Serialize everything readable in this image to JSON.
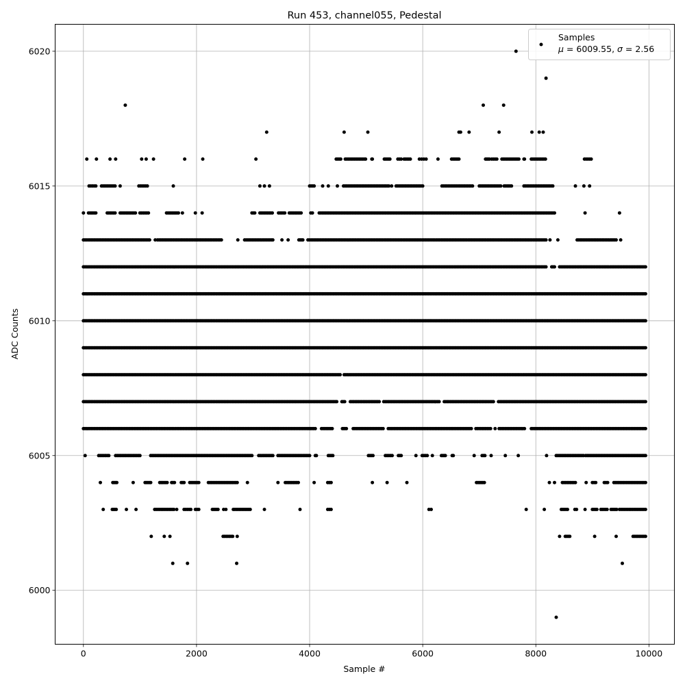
{
  "chart_data": {
    "type": "scatter",
    "title": "Run 453, channel055, Pedestal",
    "xlabel": "Sample #",
    "ylabel": "ADC Counts",
    "xlim": [
      -500,
      10450
    ],
    "ylim": [
      5998,
      6021
    ],
    "x_ticks": [
      0,
      2000,
      4000,
      6000,
      8000,
      10000
    ],
    "y_ticks": [
      6000,
      6005,
      6010,
      6015,
      6020
    ],
    "grid": true,
    "legend": {
      "placement": "top-right",
      "label": "Samples",
      "stats_parts": [
        "μ",
        " = 6009.55, ",
        "σ",
        " = 2.56"
      ]
    },
    "series": [
      {
        "marker_color": "#000000",
        "count": 10000,
        "level_ranges": [
          {
            "y": 5999,
            "ranges": [
              [
                8360,
                8360
              ]
            ]
          },
          {
            "y": 6001,
            "ranges": [
              [
                1580,
                1580
              ],
              [
                1840,
                1840
              ],
              [
                2710,
                2710
              ],
              [
                9530,
                9530
              ]
            ]
          },
          {
            "y": 6002,
            "ranges": [
              [
                1200,
                1200
              ],
              [
                1430,
                1430
              ],
              [
                1530,
                1530
              ],
              [
                2470,
                2640
              ],
              [
                2720,
                2720
              ],
              [
                8420,
                8420
              ],
              [
                8520,
                8600
              ],
              [
                9040,
                9040
              ],
              [
                9420,
                9420
              ],
              [
                9720,
                9940
              ]
            ]
          },
          {
            "y": 6003,
            "ranges": [
              [
                350,
                350
              ],
              [
                510,
                580
              ],
              [
                760,
                760
              ],
              [
                930,
                930
              ],
              [
                1260,
                1600
              ],
              [
                1650,
                1650
              ],
              [
                1780,
                1900
              ],
              [
                1980,
                2040
              ],
              [
                2280,
                2380
              ],
              [
                2480,
                2520
              ],
              [
                2650,
                2950
              ],
              [
                3200,
                3200
              ],
              [
                3830,
                3830
              ],
              [
                4320,
                4380
              ],
              [
                6110,
                6150
              ],
              [
                7830,
                7830
              ],
              [
                8150,
                8150
              ],
              [
                8450,
                8560
              ],
              [
                8690,
                8720
              ],
              [
                8870,
                8870
              ],
              [
                9000,
                9080
              ],
              [
                9150,
                9260
              ],
              [
                9330,
                9430
              ],
              [
                9480,
                9940
              ]
            ]
          },
          {
            "y": 6004,
            "ranges": [
              [
                300,
                300
              ],
              [
                520,
                590
              ],
              [
                880,
                880
              ],
              [
                1090,
                1190
              ],
              [
                1350,
                1480
              ],
              [
                1560,
                1610
              ],
              [
                1730,
                1780
              ],
              [
                1880,
                2040
              ],
              [
                2210,
                2720
              ],
              [
                2900,
                2900
              ],
              [
                3440,
                3440
              ],
              [
                3570,
                3800
              ],
              [
                4080,
                4080
              ],
              [
                4320,
                4380
              ],
              [
                5110,
                5110
              ],
              [
                5370,
                5370
              ],
              [
                5720,
                5720
              ],
              [
                6950,
                7090
              ],
              [
                8240,
                8240
              ],
              [
                8330,
                8330
              ],
              [
                8470,
                8700
              ],
              [
                8890,
                8890
              ],
              [
                9000,
                9060
              ],
              [
                9210,
                9270
              ],
              [
                9380,
                9940
              ]
            ]
          },
          {
            "y": 6005,
            "ranges": [
              [
                30,
                30
              ],
              [
                270,
                450
              ],
              [
                570,
                1000
              ],
              [
                1190,
                2980
              ],
              [
                3100,
                3350
              ],
              [
                3440,
                4000
              ],
              [
                4100,
                4120
              ],
              [
                4330,
                4410
              ],
              [
                5040,
                5120
              ],
              [
                5340,
                5460
              ],
              [
                5570,
                5620
              ],
              [
                5880,
                5880
              ],
              [
                5990,
                6080
              ],
              [
                6170,
                6170
              ],
              [
                6330,
                6400
              ],
              [
                6520,
                6540
              ],
              [
                6910,
                6910
              ],
              [
                7050,
                7100
              ],
              [
                7210,
                7210
              ],
              [
                7460,
                7460
              ],
              [
                7690,
                7690
              ],
              [
                8190,
                8190
              ],
              [
                8360,
                8840
              ],
              [
                8880,
                9940
              ]
            ]
          },
          {
            "y": 6006,
            "ranges": [
              [
                0,
                4100
              ],
              [
                4210,
                4400
              ],
              [
                4580,
                4650
              ],
              [
                4770,
                5300
              ],
              [
                5390,
                6860
              ],
              [
                6940,
                7200
              ],
              [
                7280,
                7280
              ],
              [
                7350,
                7800
              ],
              [
                7920,
                9940
              ]
            ]
          },
          {
            "y": 6007,
            "ranges": [
              [
                0,
                4480
              ],
              [
                4570,
                4620
              ],
              [
                4720,
                5230
              ],
              [
                5310,
                6290
              ],
              [
                6380,
                7250
              ],
              [
                7340,
                9940
              ]
            ]
          },
          {
            "y": 6008,
            "ranges": [
              [
                0,
                4540
              ],
              [
                4610,
                9940
              ]
            ]
          },
          {
            "y": 6009,
            "ranges": [
              [
                0,
                9940
              ]
            ]
          },
          {
            "y": 6010,
            "ranges": [
              [
                0,
                9940
              ]
            ]
          },
          {
            "y": 6011,
            "ranges": [
              [
                0,
                9940
              ]
            ]
          },
          {
            "y": 6012,
            "ranges": [
              [
                0,
                8180
              ],
              [
                8280,
                8330
              ],
              [
                8420,
                9940
              ]
            ]
          },
          {
            "y": 6013,
            "ranges": [
              [
                0,
                1170
              ],
              [
                1270,
                1270
              ],
              [
                1310,
                2440
              ],
              [
                2730,
                2730
              ],
              [
                2850,
                3350
              ],
              [
                3510,
                3510
              ],
              [
                3620,
                3620
              ],
              [
                3810,
                3880
              ],
              [
                3970,
                8180
              ],
              [
                8250,
                8250
              ],
              [
                8390,
                8390
              ],
              [
                8730,
                9420
              ],
              [
                9500,
                9500
              ]
            ]
          },
          {
            "y": 6014,
            "ranges": [
              [
                0,
                0
              ],
              [
                90,
                220
              ],
              [
                420,
                560
              ],
              [
                650,
                920
              ],
              [
                1000,
                1150
              ],
              [
                1470,
                1680
              ],
              [
                1750,
                1750
              ],
              [
                1980,
                1980
              ],
              [
                2100,
                2100
              ],
              [
                2980,
                3030
              ],
              [
                3120,
                3340
              ],
              [
                3450,
                3560
              ],
              [
                3640,
                3850
              ],
              [
                4020,
                4050
              ],
              [
                4170,
                8330
              ],
              [
                8870,
                8870
              ],
              [
                9480,
                9480
              ]
            ]
          },
          {
            "y": 6015,
            "ranges": [
              [
                100,
                220
              ],
              [
                320,
                560
              ],
              [
                650,
                650
              ],
              [
                980,
                1130
              ],
              [
                1590,
                1590
              ],
              [
                3120,
                3120
              ],
              [
                3200,
                3200
              ],
              [
                3290,
                3290
              ],
              [
                4000,
                4080
              ],
              [
                4230,
                4230
              ],
              [
                4330,
                4330
              ],
              [
                4490,
                4490
              ],
              [
                4600,
                5400
              ],
              [
                5450,
                5450
              ],
              [
                5530,
                6000
              ],
              [
                6340,
                6880
              ],
              [
                7000,
                7380
              ],
              [
                7440,
                7570
              ],
              [
                7790,
                8300
              ],
              [
                8700,
                8700
              ],
              [
                8850,
                8850
              ],
              [
                8950,
                8950
              ]
            ]
          },
          {
            "y": 6016,
            "ranges": [
              [
                60,
                60
              ],
              [
                230,
                230
              ],
              [
                470,
                470
              ],
              [
                570,
                570
              ],
              [
                1030,
                1030
              ],
              [
                1110,
                1110
              ],
              [
                1240,
                1240
              ],
              [
                1790,
                1790
              ],
              [
                2110,
                2110
              ],
              [
                3050,
                3050
              ],
              [
                4470,
                4550
              ],
              [
                4630,
                4990
              ],
              [
                5100,
                5110
              ],
              [
                5320,
                5420
              ],
              [
                5560,
                5620
              ],
              [
                5670,
                5780
              ],
              [
                5940,
                5980
              ],
              [
                6020,
                6060
              ],
              [
                6270,
                6270
              ],
              [
                6510,
                6640
              ],
              [
                7110,
                7180
              ],
              [
                7220,
                7310
              ],
              [
                7400,
                7700
              ],
              [
                7790,
                7800
              ],
              [
                7920,
                8170
              ],
              [
                8860,
                8980
              ]
            ]
          },
          {
            "y": 6017,
            "ranges": [
              [
                3240,
                3240
              ],
              [
                4610,
                4610
              ],
              [
                5030,
                5030
              ],
              [
                6640,
                6670
              ],
              [
                6820,
                6820
              ],
              [
                7350,
                7350
              ],
              [
                7930,
                7930
              ],
              [
                8060,
                8060
              ],
              [
                8130,
                8130
              ]
            ]
          },
          {
            "y": 6018,
            "ranges": [
              [
                740,
                740
              ],
              [
                7070,
                7070
              ],
              [
                7430,
                7430
              ]
            ]
          },
          {
            "y": 6019,
            "ranges": [
              [
                8180,
                8180
              ]
            ]
          },
          {
            "y": 6020,
            "ranges": [
              [
                7650,
                7650
              ]
            ]
          }
        ]
      }
    ]
  }
}
